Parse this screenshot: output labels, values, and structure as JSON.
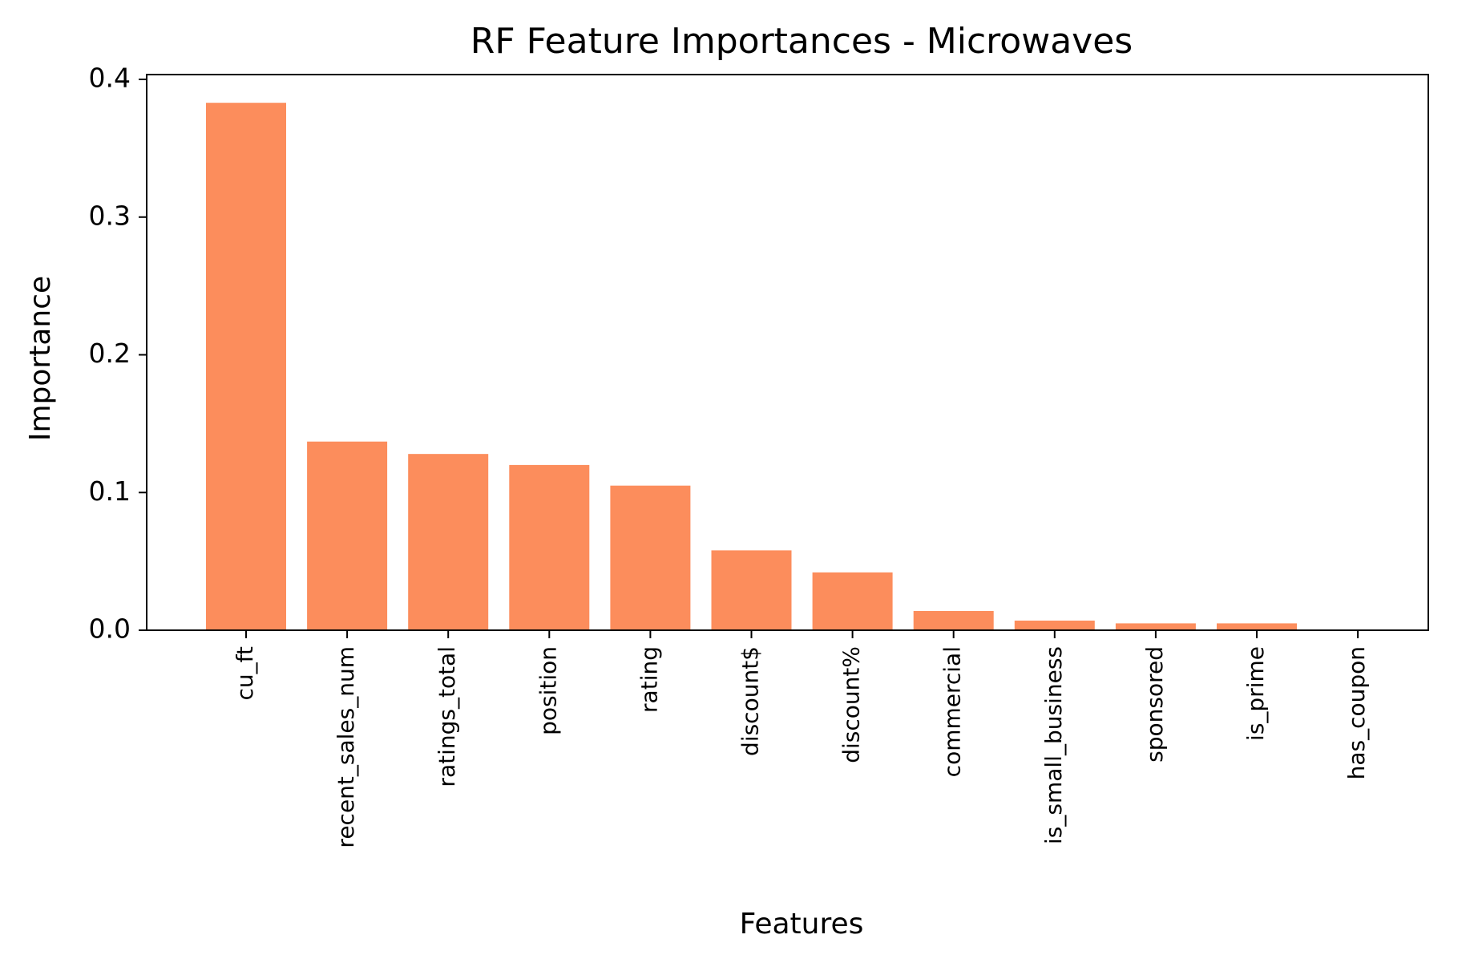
{
  "chart_data": {
    "type": "bar",
    "title": "RF Feature Importances - Microwaves",
    "xlabel": "Features",
    "ylabel": "Importance",
    "categories": [
      "cu_ft",
      "recent_sales_num",
      "ratings_total",
      "position",
      "rating",
      "discount$",
      "discount%",
      "commercial",
      "is_small_business",
      "sponsored",
      "is_prime",
      "has_coupon"
    ],
    "values": [
      0.383,
      0.137,
      0.128,
      0.12,
      0.105,
      0.058,
      0.042,
      0.014,
      0.007,
      0.005,
      0.005,
      0.0
    ],
    "yticks": [
      "0.0",
      "0.1",
      "0.2",
      "0.3",
      "0.4"
    ],
    "ylim": [
      0,
      0.4
    ],
    "bar_color": "#fc8d5c",
    "grid": false,
    "legend": "none"
  }
}
